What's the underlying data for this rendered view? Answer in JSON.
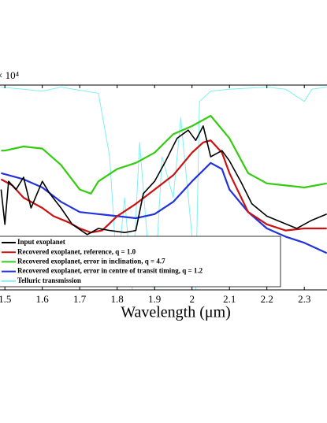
{
  "chart_data": {
    "type": "line",
    "multiplier": "× 10⁴",
    "x_label": "Wavelength (μm)",
    "xlim": [
      1.487,
      2.36
    ],
    "xticks": [
      1.5,
      1.6,
      1.7,
      1.8,
      1.9,
      2,
      2.1,
      2.2,
      2.3
    ],
    "ylim": [
      0,
      1
    ],
    "legend": "lower left",
    "series": [
      {
        "name": "Telluric transmission",
        "color": "#80f0f0",
        "legend_order": 4,
        "x": [
          1.49,
          1.55,
          1.6,
          1.65,
          1.75,
          1.78,
          1.8,
          1.82,
          1.84,
          1.86,
          1.88,
          1.9,
          1.92,
          1.95,
          1.97,
          2.0,
          2.01,
          2.02,
          2.05,
          2.1,
          2.2,
          2.25,
          2.3,
          2.32,
          2.36
        ],
        "values": [
          0.99,
          0.98,
          0.97,
          0.99,
          0.96,
          0.65,
          0.07,
          0.45,
          0,
          0.72,
          0.26,
          0,
          0.65,
          0.45,
          0.84,
          0.26,
          0,
          0.92,
          0.97,
          0.98,
          0.99,
          0.98,
          0.92,
          0.98,
          0.99
        ]
      },
      {
        "name": "Recovered exoplanet, error in inclination, q = 4.7",
        "color": "#33cc11",
        "legend_order": 2,
        "x": [
          1.49,
          1.5,
          1.55,
          1.6,
          1.65,
          1.7,
          1.73,
          1.75,
          1.8,
          1.85,
          1.9,
          1.95,
          2.0,
          2.05,
          2.1,
          2.15,
          2.2,
          2.25,
          2.3,
          2.36
        ],
        "values": [
          0.68,
          0.68,
          0.7,
          0.69,
          0.61,
          0.49,
          0.47,
          0.53,
          0.59,
          0.62,
          0.67,
          0.76,
          0.8,
          0.85,
          0.74,
          0.57,
          0.52,
          0.51,
          0.5,
          0.52
        ]
      },
      {
        "name": "Recovered exoplanet, error in centre of transit timing, q = 1.2",
        "color": "#2233dd",
        "legend_order": 3,
        "x": [
          1.49,
          1.55,
          1.6,
          1.65,
          1.7,
          1.75,
          1.8,
          1.85,
          1.9,
          1.95,
          2.0,
          2.05,
          2.08,
          2.1,
          2.15,
          2.2,
          2.25,
          2.3,
          2.36
        ],
        "values": [
          0.57,
          0.54,
          0.5,
          0.43,
          0.38,
          0.37,
          0.36,
          0.35,
          0.37,
          0.43,
          0.53,
          0.62,
          0.59,
          0.49,
          0.38,
          0.3,
          0.26,
          0.23,
          0.18
        ]
      },
      {
        "name": "Recovered exoplanet, reference, q = 1.0",
        "color": "#cc1111",
        "legend_order": 1,
        "x": [
          1.49,
          1.52,
          1.55,
          1.6,
          1.63,
          1.67,
          1.7,
          1.73,
          1.76,
          1.8,
          1.85,
          1.9,
          1.95,
          2.0,
          2.03,
          2.05,
          2.08,
          2.1,
          2.15,
          2.2,
          2.25,
          2.3,
          2.36
        ],
        "values": [
          0.54,
          0.51,
          0.45,
          0.4,
          0.36,
          0.33,
          0.3,
          0.28,
          0.29,
          0.36,
          0.42,
          0.49,
          0.56,
          0.67,
          0.72,
          0.73,
          0.67,
          0.57,
          0.38,
          0.32,
          0.29,
          0.3,
          0.3
        ]
      },
      {
        "name": "Input exoplanet",
        "color": "#000000",
        "legend_order": 0,
        "x": [
          1.49,
          1.5,
          1.51,
          1.53,
          1.55,
          1.57,
          1.6,
          1.62,
          1.65,
          1.68,
          1.72,
          1.75,
          1.78,
          1.82,
          1.85,
          1.87,
          1.9,
          1.93,
          1.96,
          1.99,
          2.01,
          2.03,
          2.05,
          2.08,
          2.1,
          2.13,
          2.16,
          2.2,
          2.24,
          2.28,
          2.32,
          2.36
        ],
        "values": [
          0.49,
          0.32,
          0.53,
          0.49,
          0.55,
          0.4,
          0.53,
          0.47,
          0.4,
          0.32,
          0.27,
          0.3,
          0.29,
          0.28,
          0.29,
          0.47,
          0.53,
          0.63,
          0.74,
          0.78,
          0.73,
          0.8,
          0.65,
          0.68,
          0.63,
          0.53,
          0.42,
          0.36,
          0.33,
          0.3,
          0.34,
          0.37
        ]
      }
    ]
  }
}
